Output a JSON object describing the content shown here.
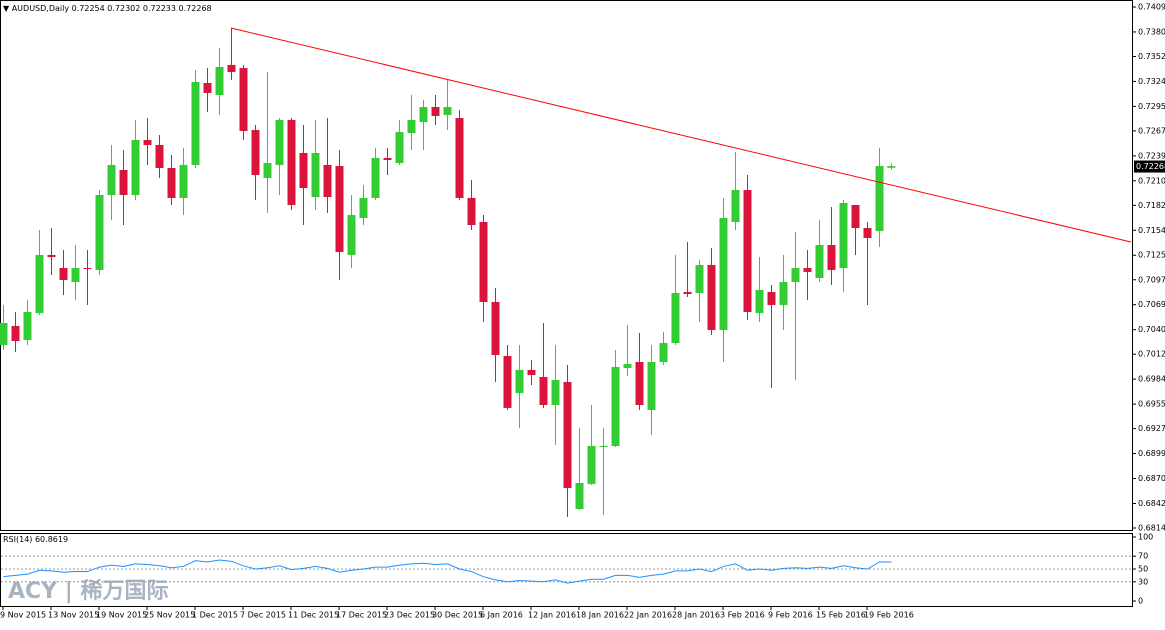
{
  "chart_data": {
    "type": "candlestick",
    "title": "AUDUSD,Daily",
    "up_color": "#32cd32",
    "down_color": "#dc143c",
    "categories": [
      "9 Nov 2015",
      null,
      null,
      null,
      "13 Nov 2015",
      null,
      null,
      null,
      "19 Nov 2015",
      null,
      null,
      null,
      "25 Nov 2015",
      null,
      null,
      null,
      "1 Dec 2015",
      null,
      null,
      null,
      "7 Dec 2015",
      null,
      null,
      null,
      "11 Dec 2015",
      null,
      null,
      null,
      "17 Dec 2015",
      null,
      null,
      null,
      "23 Dec 2015",
      null,
      null,
      null,
      "30 Dec 2015",
      null,
      null,
      null,
      "6 Jan 2016",
      null,
      null,
      null,
      "12 Jan 2016",
      null,
      null,
      null,
      "18 Jan 2016",
      null,
      null,
      null,
      "22 Jan 2016",
      null,
      null,
      null,
      "28 Jan 2016",
      null,
      null,
      null,
      "3 Feb 2016",
      null,
      null,
      null,
      "9 Feb 2016",
      null,
      null,
      null,
      "15 Feb 2016",
      null,
      null,
      null,
      "19 Feb 2016",
      null,
      null
    ],
    "open": [
      0.7023,
      0.70447,
      0.70287,
      0.70595,
      0.71258,
      0.71109,
      0.70949,
      0.71109,
      0.71087,
      0.71943,
      0.72229,
      0.71943,
      0.72571,
      0.72514,
      0.72251,
      0.71909,
      0.72286,
      0.73222,
      0.73085,
      0.73428,
      0.73393,
      0.72685,
      0.72137,
      0.72286,
      0.728,
      0.72423,
      0.7192,
      0.72286,
      0.72274,
      0.71258,
      0.7168,
      0.71909,
      0.72366,
      0.72308,
      0.72651,
      0.72777,
      0.72948,
      0.72857,
      0.72822,
      0.71909,
      0.71635,
      0.70721,
      0.70104,
      0.69682,
      0.69945,
      0.69865,
      0.69545,
      0.69807,
      0.68357,
      0.68643,
      0.69065,
      0.69077,
      0.69967,
      0.70036,
      0.69488,
      0.70036,
      0.70253,
      0.70835,
      0.70824,
      0.71144,
      0.70401,
      0.71635,
      0.72,
      0.70595,
      0.70835,
      0.70687,
      0.70949,
      0.71109,
      0.70995,
      0.71372,
      0.71109,
      0.71829,
      0.71566,
      0.71532,
      0.72254
    ],
    "high": [
      0.70687,
      0.70607,
      0.70744,
      0.71543,
      0.71566,
      0.71315,
      0.71372,
      0.71315,
      0.72,
      0.72514,
      0.72457,
      0.728,
      0.72822,
      0.72628,
      0.724,
      0.7248,
      0.73371,
      0.73393,
      0.73622,
      0.7385,
      0.73428,
      0.72742,
      0.73348,
      0.72822,
      0.72822,
      0.72742,
      0.728,
      0.72822,
      0.72457,
      0.71943,
      0.72057,
      0.7248,
      0.7248,
      0.728,
      0.73085,
      0.73028,
      0.73085,
      0.73256,
      0.72914,
      0.72114,
      0.71715,
      0.70881,
      0.7023,
      0.7023,
      0.70059,
      0.70481,
      0.7023,
      0.70002,
      0.69282,
      0.69545,
      0.69282,
      0.70173,
      0.70458,
      0.70367,
      0.7023,
      0.70378,
      0.71258,
      0.71406,
      0.71201,
      0.71338,
      0.71909,
      0.72434,
      0.72171,
      0.71235,
      0.70915,
      0.71258,
      0.7152,
      0.71315,
      0.71658,
      0.71806,
      0.71886,
      0.71829,
      0.71635,
      0.7248,
      0.72302
    ],
    "low": [
      0.70173,
      0.7015,
      0.7023,
      0.70573,
      0.71029,
      0.70801,
      0.70744,
      0.70687,
      0.71029,
      0.71658,
      0.716,
      0.71886,
      0.72286,
      0.72137,
      0.71829,
      0.71715,
      0.72251,
      0.72891,
      0.72857,
      0.73256,
      0.72571,
      0.71886,
      0.71737,
      0.71943,
      0.71772,
      0.716,
      0.71772,
      0.71737,
      0.70972,
      0.71109,
      0.716,
      0.71886,
      0.72171,
      0.72286,
      0.72457,
      0.72457,
      0.72742,
      0.72685,
      0.71886,
      0.71543,
      0.70493,
      0.69807,
      0.69488,
      0.69282,
      0.69773,
      0.69511,
      0.69088,
      0.68266,
      0.68346,
      0.68631,
      0.68289,
      0.69065,
      0.69876,
      0.69488,
      0.69202,
      0.70002,
      0.7023,
      0.70778,
      0.70493,
      0.70344,
      0.70036,
      0.71543,
      0.70516,
      0.70493,
      0.69739,
      0.70401,
      0.6983,
      0.70744,
      0.70949,
      0.70915,
      0.70835,
      0.71258,
      0.70687,
      0.71349,
      0.72233
    ],
    "close": [
      0.70481,
      0.70276,
      0.70607,
      0.71258,
      0.71235,
      0.70972,
      0.71109,
      0.71098,
      0.71943,
      0.72286,
      0.71943,
      0.72571,
      0.72514,
      0.72251,
      0.71909,
      0.72286,
      0.73233,
      0.73108,
      0.73405,
      0.73348,
      0.72674,
      0.72171,
      0.72308,
      0.728,
      0.71829,
      0.72023,
      0.72423,
      0.7192,
      0.71292,
      0.71715,
      0.71909,
      0.72366,
      0.72343,
      0.72662,
      0.728,
      0.72948,
      0.72845,
      0.72948,
      0.71909,
      0.716,
      0.70721,
      0.70116,
      0.69511,
      0.69945,
      0.69887,
      0.69545,
      0.6983,
      0.68597,
      0.68654,
      0.69077,
      0.69077,
      0.69979,
      0.70013,
      0.69545,
      0.70036,
      0.70253,
      0.70824,
      0.70812,
      0.71144,
      0.70401,
      0.7168,
      0.72,
      0.70607,
      0.70858,
      0.70687,
      0.70949,
      0.71109,
      0.71064,
      0.71372,
      0.71087,
      0.71852,
      0.71566,
      0.71452,
      0.72274,
      0.72268
    ],
    "ylim": [
      0.6814,
      0.7409
    ],
    "yticks": [
      {
        "value": 0.7409,
        "label": "0.74090"
      },
      0.73805,
      0.73525,
      {
        "value": 0.7324,
        "label": "0.73240"
      },
      0.72955,
      0.72675,
      {
        "value": 0.7239,
        "label": "0.72390"
      },
      0.72105,
      0.71825,
      {
        "value": 0.7154,
        "label": "0.71540"
      },
      0.71255,
      0.70975,
      {
        "value": 0.7069,
        "label": "0.70690"
      },
      0.70405,
      0.70125,
      {
        "value": 0.6984,
        "label": "0.69840"
      },
      0.69555,
      0.69275,
      {
        "value": 0.6899,
        "label": "0.68990"
      },
      0.68705,
      {
        "value": 0.6842,
        "label": "0.68420"
      },
      {
        "value": 0.6814,
        "label": "0.68140"
      }
    ],
    "trendline": {
      "color": "#ff0000",
      "x": [
        19,
        94
      ],
      "y": [
        0.7385,
        0.71406
      ]
    },
    "indicator": {
      "type": "line",
      "title": "RSI(14)",
      "color": "#1e90ff",
      "values": [
        38,
        40,
        42,
        48,
        47,
        45,
        46,
        46,
        53,
        56,
        54,
        58,
        57,
        55,
        52,
        54,
        63,
        61,
        64,
        62,
        55,
        50,
        52,
        55,
        49,
        51,
        54,
        51,
        45,
        48,
        50,
        53,
        53,
        56,
        58,
        59,
        57,
        58,
        50,
        46,
        38,
        33,
        30,
        32,
        31,
        30,
        33,
        28,
        31,
        34,
        34,
        40,
        40,
        37,
        40,
        42,
        47,
        47,
        50,
        46,
        54,
        58,
        48,
        50,
        48,
        51,
        52,
        51,
        53,
        51,
        55,
        52,
        50,
        61,
        60.8619
      ],
      "ylim": [
        0,
        100
      ],
      "yticks": [
        100,
        70,
        50,
        30,
        0
      ]
    },
    "watermark": "ACY | 稀万国际"
  }
}
